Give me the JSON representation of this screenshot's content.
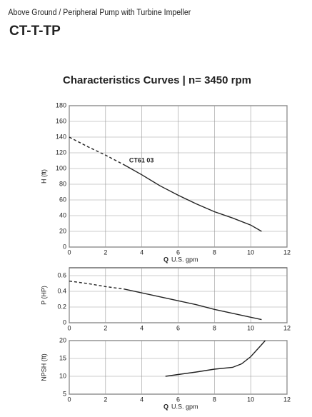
{
  "header": {
    "subtitle": "Above Ground / Peripheral Pump with Turbine Impeller",
    "title": "CT-T-TP",
    "section_title": "Characteristics Curves |  n= 3450 rpm"
  },
  "chart_data": [
    {
      "type": "line",
      "ylabel": "H (ft)",
      "xlabel_symbol": "Q",
      "xlabel": "U.S. gpm",
      "xlim": [
        0,
        12
      ],
      "xticks": [
        0,
        2,
        4,
        6,
        8,
        10,
        12
      ],
      "ylim": [
        0,
        180
      ],
      "yticks": [
        0,
        20,
        40,
        60,
        80,
        100,
        120,
        140,
        160,
        180
      ],
      "grid": true,
      "annotations": [
        {
          "text": "CT61 03",
          "x": 3.3,
          "y": 110
        }
      ],
      "series": [
        {
          "color": "#222222",
          "style": "dashed",
          "x": [
            0,
            1,
            2,
            3
          ],
          "values": [
            140,
            128,
            117,
            105
          ]
        },
        {
          "color": "#222222",
          "style": "solid",
          "x": [
            3,
            4,
            5,
            6,
            7,
            8,
            9,
            10,
            10.6
          ],
          "values": [
            105,
            92,
            78,
            66,
            55,
            45,
            37,
            28,
            20
          ]
        }
      ]
    },
    {
      "type": "line",
      "ylabel": "P (HP)",
      "xlim": [
        0,
        12
      ],
      "xticks": [
        0,
        2,
        4,
        6,
        8,
        10,
        12
      ],
      "ylim": [
        0,
        0.7
      ],
      "yticks": [
        0,
        0.2,
        0.4,
        0.6
      ],
      "grid": true,
      "series": [
        {
          "color": "#222222",
          "style": "dashed",
          "x": [
            0,
            1,
            2,
            3
          ],
          "values": [
            0.53,
            0.5,
            0.46,
            0.43
          ]
        },
        {
          "color": "#222222",
          "style": "solid",
          "x": [
            3,
            4,
            5,
            6,
            7,
            8,
            9,
            10,
            10.6
          ],
          "values": [
            0.43,
            0.38,
            0.33,
            0.28,
            0.23,
            0.17,
            0.12,
            0.07,
            0.04
          ]
        }
      ]
    },
    {
      "type": "line",
      "ylabel": "NPSH (ft)",
      "xlabel_symbol": "Q",
      "xlabel": "U.S. gpm",
      "xlim": [
        0,
        12
      ],
      "xticks": [
        0,
        2,
        4,
        6,
        8,
        10,
        12
      ],
      "ylim": [
        5,
        20
      ],
      "yticks": [
        5,
        10,
        15,
        20
      ],
      "grid": true,
      "series": [
        {
          "color": "#222222",
          "style": "solid",
          "x": [
            5.3,
            6,
            7,
            8,
            9,
            9.5,
            10,
            10.5,
            10.8
          ],
          "values": [
            10,
            10.5,
            11.2,
            12,
            12.5,
            13.5,
            15.5,
            18.3,
            20
          ]
        }
      ]
    }
  ]
}
